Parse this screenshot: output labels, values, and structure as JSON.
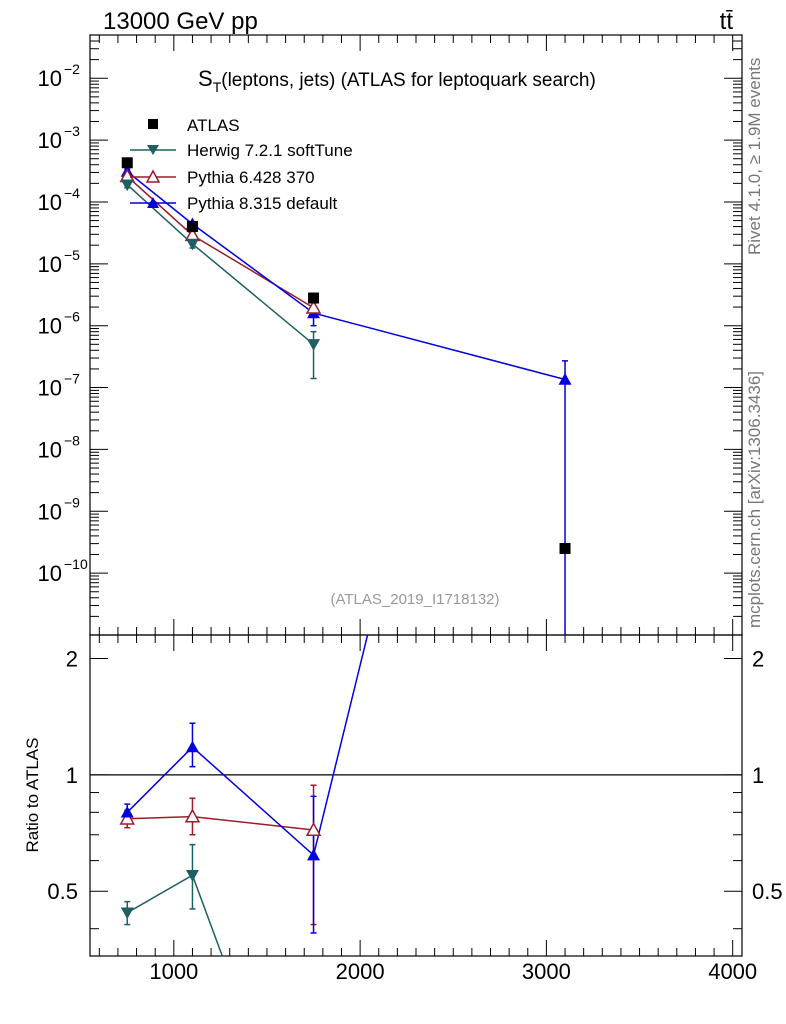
{
  "header": {
    "left": "13000 GeV pp",
    "right": "tt̄"
  },
  "side_labels": {
    "rivet": "Rivet 4.1.0, ≥ 1.9M events",
    "mcplots": "mcplots.cern.ch [arXiv:1306.3436]"
  },
  "chart_data": {
    "type": "line",
    "title": "S_T(leptons, jets) (ATLAS for leptoquark search)",
    "title_main": "S",
    "title_sub": "T",
    "title_rest": "(leptons, jets) (ATLAS for leptoquark search)",
    "analysis_id": "(ATLAS_2019_I1718132)",
    "xlabel": "",
    "ylabel": "",
    "xlim": [
      550,
      4050
    ],
    "ylim": [
      1e-11,
      0.05
    ],
    "yscale": "log",
    "x_ticks": [
      1000,
      2000,
      3000,
      4000
    ],
    "x_tick_labels": [
      "1000",
      "2000",
      "3000",
      "4000"
    ],
    "y_ticks": [
      1e-10,
      1e-09,
      1e-08,
      1e-07,
      1e-06,
      1e-05,
      0.0001,
      0.001,
      0.01
    ],
    "y_tick_mant": [
      "10",
      "10",
      "10",
      "10",
      "10",
      "10",
      "10",
      "10",
      "10"
    ],
    "y_tick_exp": [
      "−10",
      "−9",
      "−8",
      "−7",
      "−6",
      "−5",
      "−4",
      "−3",
      "−2"
    ],
    "legend": [
      {
        "name": "ATLAS",
        "color": "#000000",
        "marker": "square"
      },
      {
        "name": "Herwig 7.2.1 softTune",
        "color": "#1f5f61",
        "marker": "triangle-down"
      },
      {
        "name": "Pythia 6.428 370",
        "color": "#9b1c2b",
        "marker": "triangle-up-open"
      },
      {
        "name": "Pythia 8.315 default",
        "color": "#0000e0",
        "marker": "triangle-up"
      }
    ],
    "series": [
      {
        "name": "ATLAS",
        "x": [
          750,
          1100,
          1750,
          3100
        ],
        "y": [
          0.00043,
          4e-05,
          2.8e-06,
          2.5e-10
        ]
      },
      {
        "name": "Herwig 7.2.1 softTune",
        "x": [
          750,
          1100,
          1750
        ],
        "y": [
          0.00019,
          2.1e-05,
          5e-07
        ],
        "err_lo": [
          0.00017,
          1.8e-05,
          1.4e-07
        ],
        "err_hi": [
          0.00021,
          2.5e-05,
          8e-07
        ]
      },
      {
        "name": "Pythia 6.428 370",
        "x": [
          750,
          1100,
          1750
        ],
        "y": [
          0.00026,
          2.9e-05,
          1.95e-06
        ],
        "err_lo": [
          0.00024,
          2.6e-05,
          1.5e-06
        ],
        "err_hi": [
          0.00028,
          3.2e-05,
          2.5e-06
        ]
      },
      {
        "name": "Pythia 8.315 default",
        "x": [
          750,
          1100,
          1750,
          3100
        ],
        "y": [
          0.00031,
          4.4e-05,
          1.6e-06,
          1.35e-07
        ],
        "err_lo": [
          0.00029,
          4e-05,
          1e-06,
          1e-12
        ],
        "err_hi": [
          0.00034,
          4.8e-05,
          2e-06,
          2.7e-07
        ]
      }
    ],
    "ratio": {
      "ylabel": "Ratio to ATLAS",
      "ylim": [
        0.34,
        2.3
      ],
      "y_ticks": [
        0.5,
        1,
        2
      ],
      "y_tick_labels": [
        "0.5",
        "1",
        "2"
      ],
      "series": [
        {
          "name": "Herwig 7.2.1 softTune",
          "x": [
            750,
            1100,
            1260
          ],
          "y": [
            0.44,
            0.55,
            0.33
          ],
          "err_lo": [
            0.41,
            0.45,
            0.33
          ],
          "err_hi": [
            0.47,
            0.66,
            0.33
          ],
          "marker_count": 2
        },
        {
          "name": "Pythia 6.428 370",
          "x": [
            750,
            1100,
            1750
          ],
          "y": [
            0.77,
            0.78,
            0.72
          ],
          "err_lo": [
            0.73,
            0.7,
            0.41
          ],
          "err_hi": [
            0.81,
            0.87,
            0.94
          ],
          "marker_count": 3
        },
        {
          "name": "Pythia 8.315 default",
          "x": [
            750,
            1100,
            1750,
            2040
          ],
          "y": [
            0.8,
            1.18,
            0.62,
            2.3
          ],
          "err_lo": [
            0.76,
            1.05,
            0.39,
            2.3
          ],
          "err_hi": [
            0.84,
            1.36,
            0.88,
            2.3
          ],
          "marker_count": 3
        }
      ]
    }
  }
}
